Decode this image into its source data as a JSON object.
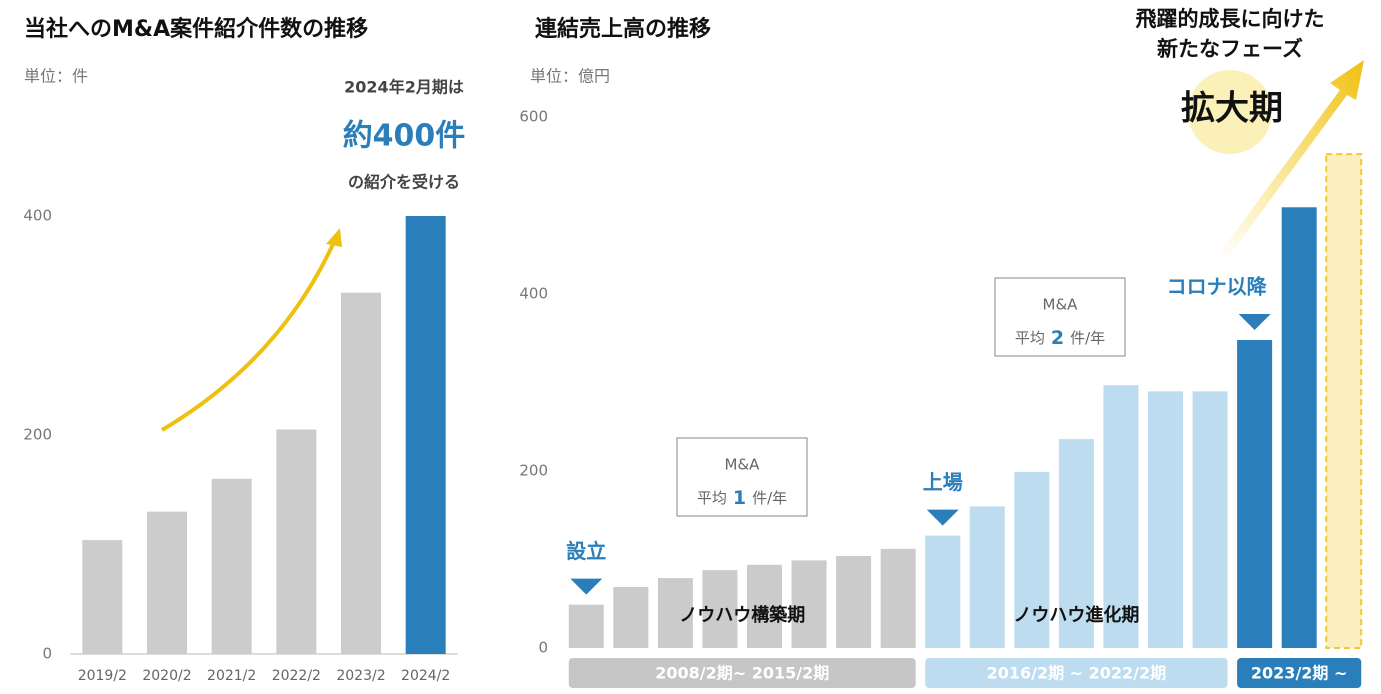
{
  "chart_data": [
    {
      "type": "bar",
      "title": "当社へのM&A案件紹介件数の推移",
      "unit": "単位：件",
      "categories": [
        "2019/2",
        "2020/2",
        "2021/2",
        "2022/2",
        "2023/2",
        "2024/2"
      ],
      "values": [
        104,
        130,
        160,
        205,
        330,
        400
      ],
      "colors": [
        "#cccccc",
        "#cccccc",
        "#cccccc",
        "#cccccc",
        "#cccccc",
        "#2a7fba"
      ],
      "ylim": [
        0,
        400
      ],
      "yticks": [
        0,
        200,
        400
      ],
      "grid": false,
      "annotations": [
        "2024年2月期は",
        "約400件",
        "の紹介を受ける"
      ]
    },
    {
      "type": "bar",
      "title": "連結売上高の推移",
      "unit": "単位：億円",
      "categories": [
        null,
        null,
        null,
        null,
        null,
        null,
        null,
        null,
        null,
        null,
        null,
        null,
        null,
        null,
        null,
        null,
        null,
        null
      ],
      "values": [
        49,
        69,
        79,
        88,
        94,
        99,
        104,
        112,
        127,
        160,
        199,
        236,
        297,
        290,
        290,
        348,
        498,
        558
      ],
      "colors": [
        "#cbcbcb",
        "#cbcbcb",
        "#cbcbcb",
        "#cbcbcb",
        "#cbcbcb",
        "#cbcbcb",
        "#cbcbcb",
        "#cbcbcb",
        "#bddcf0",
        "#bddcf0",
        "#bddcf0",
        "#bddcf0",
        "#bddcf0",
        "#bddcf0",
        "#bddcf0",
        "#2a7fba",
        "#2a7fba",
        "#fbefbf"
      ],
      "dashed_bars": [
        17
      ],
      "ylim": [
        0,
        600
      ],
      "yticks": [
        0,
        200,
        400,
        600
      ],
      "grid": false,
      "periods": [
        {
          "label": "2008/2期~ 2015/2期",
          "from": 0,
          "to": 7,
          "color": "#c6c6c6"
        },
        {
          "label": "2016/2期 ~ 2022/2期",
          "from": 8,
          "to": 14,
          "color": "#bddcf0"
        },
        {
          "label": "2023/2期 ~",
          "from": 15,
          "to": 17,
          "color": "#2a7fba"
        }
      ],
      "phases": [
        {
          "label": "ノウハウ構築期",
          "from": 0,
          "to": 7
        },
        {
          "label": "ノウハウ進化期",
          "from": 8,
          "to": 14
        }
      ],
      "milestones": [
        {
          "label": "設立",
          "at": 0
        },
        {
          "label": "上場",
          "at": 8
        },
        {
          "label": "コロナ以降",
          "at": 15
        }
      ],
      "ma_boxes": [
        {
          "title": "M&A",
          "prefix": "平均",
          "number": "1",
          "suffix": "件/年"
        },
        {
          "title": "M&A",
          "prefix": "平均",
          "number": "2",
          "suffix": "件/年"
        }
      ],
      "headline": [
        "飛躍的成長に向けた",
        "新たなフェーズ"
      ],
      "phase_name": "拡大期"
    }
  ]
}
